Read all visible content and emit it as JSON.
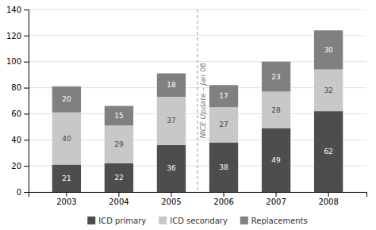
{
  "chart_data": {
    "type": "bar",
    "stacked": true,
    "categories": [
      "2003",
      "2004",
      "2005",
      "2006",
      "2007",
      "2008"
    ],
    "series": [
      {
        "name": "ICD primary",
        "color": "#4d4d4d",
        "values": [
          21,
          22,
          36,
          38,
          49,
          62
        ]
      },
      {
        "name": "ICD secondary",
        "color": "#c8c8c8",
        "values": [
          40,
          29,
          37,
          27,
          28,
          32
        ]
      },
      {
        "name": "Replacements",
        "color": "#808080",
        "values": [
          20,
          15,
          18,
          17,
          23,
          30
        ]
      }
    ],
    "ylim": [
      0,
      140
    ],
    "yticks": [
      0,
      20,
      40,
      60,
      80,
      100,
      120,
      140
    ],
    "grid": true,
    "data_labels": true,
    "legend": "bottom",
    "annotations": [
      {
        "text": "NICE Update – Jan 06",
        "between": [
          "2005",
          "2006"
        ]
      }
    ]
  }
}
